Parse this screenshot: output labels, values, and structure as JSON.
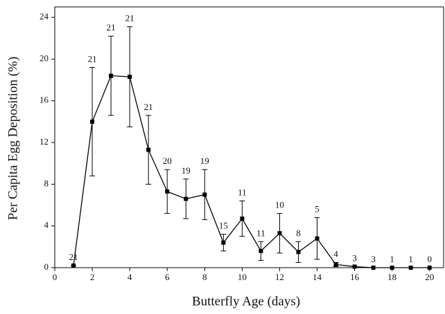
{
  "chart_data": {
    "type": "line",
    "x_label": "Butterfly Age (days)",
    "y_label": "Per Capita Egg Deposition (%)",
    "x": [
      1,
      2,
      3,
      4,
      5,
      6,
      7,
      8,
      9,
      10,
      11,
      12,
      13,
      14,
      15,
      16,
      17,
      18,
      19,
      20
    ],
    "series": [
      {
        "color": "#000000",
        "values": [
          0.2,
          14.0,
          18.4,
          18.3,
          11.3,
          7.3,
          6.6,
          7.0,
          2.4,
          4.7,
          1.6,
          3.3,
          1.5,
          2.8,
          0.3,
          0.1,
          0,
          0,
          0,
          0
        ],
        "errors": [
          0,
          5.2,
          3.8,
          4.8,
          3.3,
          2.1,
          1.9,
          2.4,
          0.8,
          1.7,
          0.9,
          1.9,
          1.0,
          2.0,
          0.2,
          0,
          0,
          0,
          0,
          0
        ],
        "annotations": [
          21,
          21,
          21,
          21,
          21,
          20,
          19,
          19,
          15,
          11,
          11,
          10,
          8,
          5,
          4,
          3,
          3,
          1,
          1,
          0
        ]
      }
    ],
    "xlim": [
      0,
      20.75
    ],
    "xticks": [
      0,
      2,
      4,
      6,
      8,
      10,
      12,
      14,
      16,
      18,
      20
    ],
    "ylim": [
      0,
      25
    ],
    "yticks": [
      0,
      4,
      8,
      12,
      16,
      20,
      24
    ]
  }
}
